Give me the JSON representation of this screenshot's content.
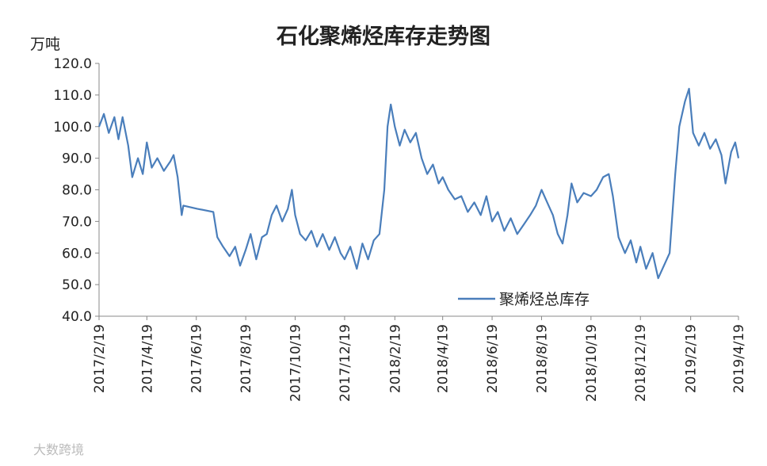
{
  "chart_data": {
    "type": "line",
    "title": "石化聚烯烃库存走势图",
    "y_label": "万吨",
    "watermark": "大数跨境",
    "x": [
      "2017/2/19",
      "2017/2/25",
      "2017/3/3",
      "2017/3/10",
      "2017/3/15",
      "2017/3/20",
      "2017/3/27",
      "2017/4/1",
      "2017/4/8",
      "2017/4/14",
      "2017/4/19",
      "2017/4/25",
      "2017/5/2",
      "2017/5/10",
      "2017/5/18",
      "2017/5/22",
      "2017/5/27",
      "2017/6/1",
      "2017/6/3",
      "2017/6/20",
      "2017/7/10",
      "2017/7/15",
      "2017/7/22",
      "2017/7/30",
      "2017/8/6",
      "2017/8/12",
      "2017/8/19",
      "2017/8/25",
      "2017/9/1",
      "2017/9/8",
      "2017/9/14",
      "2017/9/20",
      "2017/9/26",
      "2017/10/3",
      "2017/10/10",
      "2017/10/15",
      "2017/10/19",
      "2017/10/25",
      "2017/11/1",
      "2017/11/8",
      "2017/11/15",
      "2017/11/22",
      "2017/11/30",
      "2017/12/7",
      "2017/12/14",
      "2017/12/19",
      "2017/12/26",
      "2018/1/3",
      "2018/1/10",
      "2018/1/17",
      "2018/1/24",
      "2018/1/31",
      "2018/2/6",
      "2018/2/10",
      "2018/2/14",
      "2018/2/19",
      "2018/2/25",
      "2018/3/3",
      "2018/3/10",
      "2018/3/17",
      "2018/3/24",
      "2018/3/31",
      "2018/4/7",
      "2018/4/14",
      "2018/4/19",
      "2018/4/26",
      "2018/5/4",
      "2018/5/12",
      "2018/5/20",
      "2018/5/28",
      "2018/6/5",
      "2018/6/12",
      "2018/6/19",
      "2018/6/26",
      "2018/7/4",
      "2018/7/12",
      "2018/7/20",
      "2018/7/28",
      "2018/8/5",
      "2018/8/12",
      "2018/8/19",
      "2018/8/26",
      "2018/9/2",
      "2018/9/8",
      "2018/9/14",
      "2018/9/20",
      "2018/9/25",
      "2018/10/2",
      "2018/10/10",
      "2018/10/19",
      "2018/10/26",
      "2018/11/3",
      "2018/11/10",
      "2018/11/15",
      "2018/11/22",
      "2018/11/30",
      "2018/12/7",
      "2018/12/14",
      "2018/12/19",
      "2018/12/26",
      "2019/1/3",
      "2019/1/10",
      "2019/1/17",
      "2019/1/24",
      "2019/1/31",
      "2019/2/5",
      "2019/2/12",
      "2019/2/17",
      "2019/2/22",
      "2019/3/1",
      "2019/3/8",
      "2019/3/15",
      "2019/3/22",
      "2019/3/29",
      "2019/4/3",
      "2019/4/10",
      "2019/4/15",
      "2019/4/19"
    ],
    "series": [
      {
        "name": "聚烯烃总库存",
        "color": "#4a7ebb",
        "values": [
          100,
          104,
          98,
          103,
          96,
          103,
          94,
          84,
          90,
          85,
          95,
          87,
          90,
          86,
          89,
          91,
          84,
          72,
          75,
          74,
          73,
          65,
          62,
          59,
          62,
          56,
          61,
          66,
          58,
          65,
          66,
          72,
          75,
          70,
          74,
          80,
          72,
          66,
          64,
          67,
          62,
          66,
          61,
          65,
          60,
          58,
          62,
          55,
          63,
          58,
          64,
          66,
          80,
          100,
          107,
          100,
          94,
          99,
          95,
          98,
          90,
          85,
          88,
          82,
          84,
          80,
          77,
          78,
          73,
          76,
          72,
          78,
          70,
          73,
          67,
          71,
          66,
          69,
          72,
          75,
          80,
          76,
          72,
          66,
          63,
          72,
          82,
          76,
          79,
          78,
          80,
          84,
          85,
          78,
          65,
          60,
          64,
          57,
          62,
          55,
          60,
          52,
          56,
          60,
          85,
          100,
          108,
          112,
          98,
          94,
          98,
          93,
          96,
          91,
          82,
          92,
          95,
          90
        ]
      }
    ],
    "xlim": [
      "2017/2/19",
      "2019/4/19"
    ],
    "xticks": [
      "2017/2/19",
      "2017/4/19",
      "2017/6/19",
      "2017/8/19",
      "2017/10/19",
      "2017/12/19",
      "2018/2/19",
      "2018/4/19",
      "2018/6/19",
      "2018/8/19",
      "2018/10/19",
      "2018/12/19",
      "2019/2/19",
      "2019/4/19"
    ],
    "ylim": [
      40,
      120
    ],
    "yticks": [
      {
        "value": 40,
        "label": "40.0"
      },
      {
        "value": 50,
        "label": "50.0"
      },
      {
        "value": 60,
        "label": "60.0"
      },
      {
        "value": 70,
        "label": "70.0"
      },
      {
        "value": 80,
        "label": "80.0"
      },
      {
        "value": 90,
        "label": "90.0"
      },
      {
        "value": 100,
        "label": "100.0"
      },
      {
        "value": 110,
        "label": "110.0"
      },
      {
        "value": 120,
        "label": "120.0"
      }
    ],
    "legend": "bottom-right"
  }
}
